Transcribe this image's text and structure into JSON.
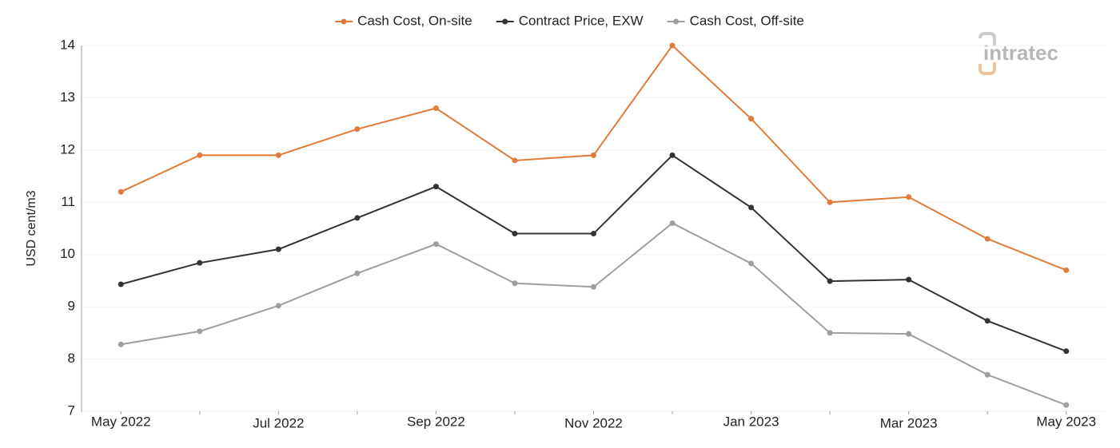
{
  "chart_data": {
    "type": "line",
    "y_label": "USD cent/m3",
    "categories": [
      "May 2022",
      null,
      "Jul 2022",
      null,
      "Sep 2022",
      null,
      "Nov 2022",
      null,
      "Jan 2023",
      null,
      "Mar 2023",
      null,
      "May 2023"
    ],
    "series": [
      {
        "name": "Cash Cost, On-site",
        "color": "#e07b39",
        "values": [
          11.2,
          11.9,
          11.9,
          12.4,
          12.8,
          11.8,
          11.9,
          14.0,
          12.6,
          11.0,
          11.1,
          10.3,
          9.7
        ]
      },
      {
        "name": "Contract Price, EXW",
        "color": "#333333",
        "values": [
          9.43,
          9.84,
          10.1,
          10.7,
          11.3,
          10.4,
          10.4,
          11.9,
          10.9,
          9.49,
          9.52,
          8.73,
          8.15
        ]
      },
      {
        "name": "Cash Cost, Off-site",
        "color": "#9e9e9e",
        "values": [
          8.28,
          8.53,
          9.02,
          9.64,
          10.2,
          9.45,
          9.38,
          10.6,
          9.83,
          8.5,
          8.48,
          7.7,
          7.12
        ]
      }
    ],
    "ylim": [
      7,
      14
    ],
    "yticks": [
      7,
      8,
      9,
      10,
      11,
      12,
      13,
      14
    ],
    "grid": true,
    "legend": "top"
  },
  "logo": "intratec"
}
